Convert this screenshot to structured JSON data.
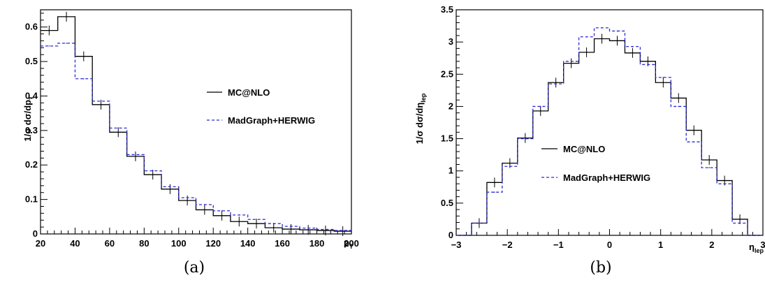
{
  "chart_data": [
    {
      "type": "histogram",
      "panel_label": "(a)",
      "xlabel_main": "p",
      "xlabel_sub": "T",
      "ylabel": "1/σ dσ/dp",
      "ylabel_sub": "T",
      "xlim": [
        20,
        200
      ],
      "ylim": [
        0,
        0.65
      ],
      "xticks": [
        "20",
        "40",
        "60",
        "80",
        "100",
        "120",
        "140",
        "160",
        "180",
        "200"
      ],
      "yticks": [
        "0",
        "0.1",
        "0.2",
        "0.3",
        "0.4",
        "0.5",
        "0.6"
      ],
      "grid": false,
      "legend_position": "middle-right",
      "bin_edges": [
        20,
        30,
        40,
        50,
        60,
        70,
        80,
        90,
        100,
        110,
        120,
        130,
        140,
        150,
        160,
        170,
        180,
        190,
        200
      ],
      "series": [
        {
          "name": "MC@NLO",
          "color": "#000000",
          "dashed": false,
          "errors": true,
          "values": [
            0.59,
            0.63,
            0.515,
            0.375,
            0.295,
            0.225,
            0.172,
            0.13,
            0.097,
            0.07,
            0.053,
            0.036,
            0.03,
            0.018,
            0.014,
            0.012,
            0.01,
            0.008
          ]
        },
        {
          "name": "MadGraph+HERWIG",
          "color": "#2b2bd6",
          "dashed": true,
          "errors": false,
          "values": [
            0.545,
            0.553,
            0.45,
            0.385,
            0.307,
            0.23,
            0.183,
            0.137,
            0.105,
            0.085,
            0.067,
            0.055,
            0.042,
            0.03,
            0.022,
            0.017,
            0.013,
            0.01
          ]
        }
      ]
    },
    {
      "type": "histogram",
      "panel_label": "(b)",
      "xlabel_main": "η",
      "xlabel_sub": "lep",
      "ylabel": "1/σ dσ/dη",
      "ylabel_sub": "lep",
      "xlim": [
        -3,
        3
      ],
      "ylim": [
        0,
        3.5
      ],
      "xticks": [
        "−3",
        "−2",
        "−1",
        "0",
        "1",
        "2",
        "3"
      ],
      "yticks": [
        "0",
        "0.5",
        "1",
        "1.5",
        "2",
        "2.5",
        "3",
        "3.5"
      ],
      "grid": false,
      "legend_position": "middle-left",
      "bin_edges": [
        -3.0,
        -2.7,
        -2.4,
        -2.1,
        -1.8,
        -1.5,
        -1.2,
        -0.9,
        -0.6,
        -0.3,
        0.0,
        0.3,
        0.6,
        0.9,
        1.2,
        1.5,
        1.8,
        2.1,
        2.4,
        2.7,
        3.0
      ],
      "series": [
        {
          "name": "MC@NLO",
          "color": "#000000",
          "dashed": false,
          "errors": true,
          "values": [
            0,
            0.19,
            0.82,
            1.12,
            1.51,
            1.93,
            2.37,
            2.67,
            2.84,
            3.05,
            3.02,
            2.83,
            2.7,
            2.37,
            2.13,
            1.63,
            1.17,
            0.85,
            0.25,
            0
          ]
        },
        {
          "name": "MadGraph+HERWIG",
          "color": "#2b2bd6",
          "dashed": true,
          "errors": false,
          "values": [
            0,
            0.19,
            0.67,
            1.07,
            1.5,
            2.0,
            2.35,
            2.7,
            3.08,
            3.22,
            3.17,
            2.93,
            2.65,
            2.45,
            2.0,
            1.45,
            1.05,
            0.8,
            0.19,
            0
          ]
        }
      ]
    }
  ]
}
